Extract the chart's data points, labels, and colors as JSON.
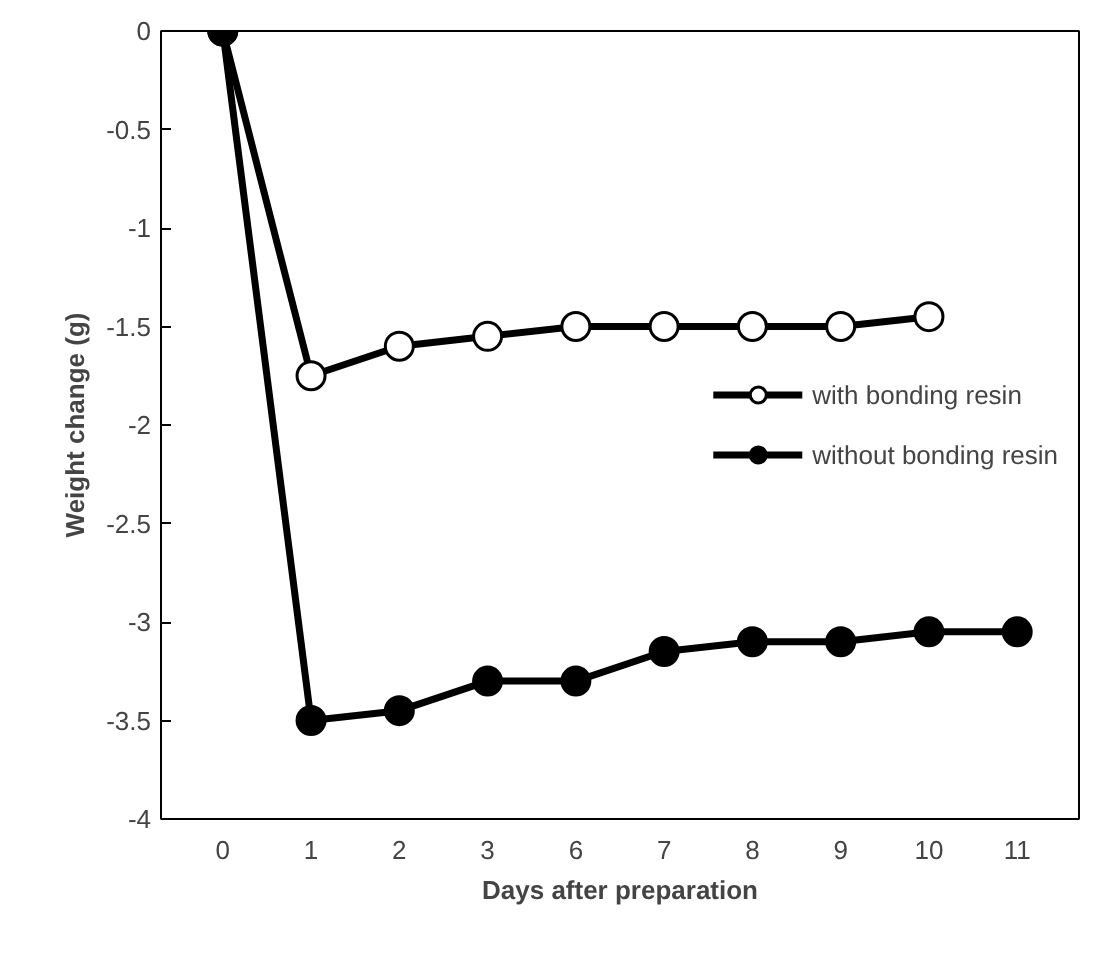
{
  "chart_data": {
    "type": "line",
    "xlabel": "Days after preparation",
    "ylabel": "Weight change (g)",
    "categories": [
      "0",
      "1",
      "2",
      "3",
      "6",
      "7",
      "8",
      "9",
      "10",
      "11"
    ],
    "series": [
      {
        "name": "with bonding resin",
        "color": "#ffffff",
        "values": [
          0,
          -1.75,
          -1.6,
          -1.55,
          -1.5,
          -1.5,
          -1.5,
          -1.5,
          -1.45,
          null
        ]
      },
      {
        "name": "without bonding resin",
        "color": "#000000",
        "values": [
          0,
          -3.5,
          -3.45,
          -3.3,
          -3.3,
          -3.15,
          -3.1,
          -3.1,
          -3.05,
          -3.05
        ]
      }
    ],
    "ylim": [
      -4,
      0
    ],
    "yticks": [
      -4,
      -3.5,
      -3,
      -2.5,
      -2,
      -1.5,
      -1,
      -0.5,
      0
    ],
    "grid": false,
    "legend": "right",
    "marker": "circle",
    "line_style": "solid"
  }
}
